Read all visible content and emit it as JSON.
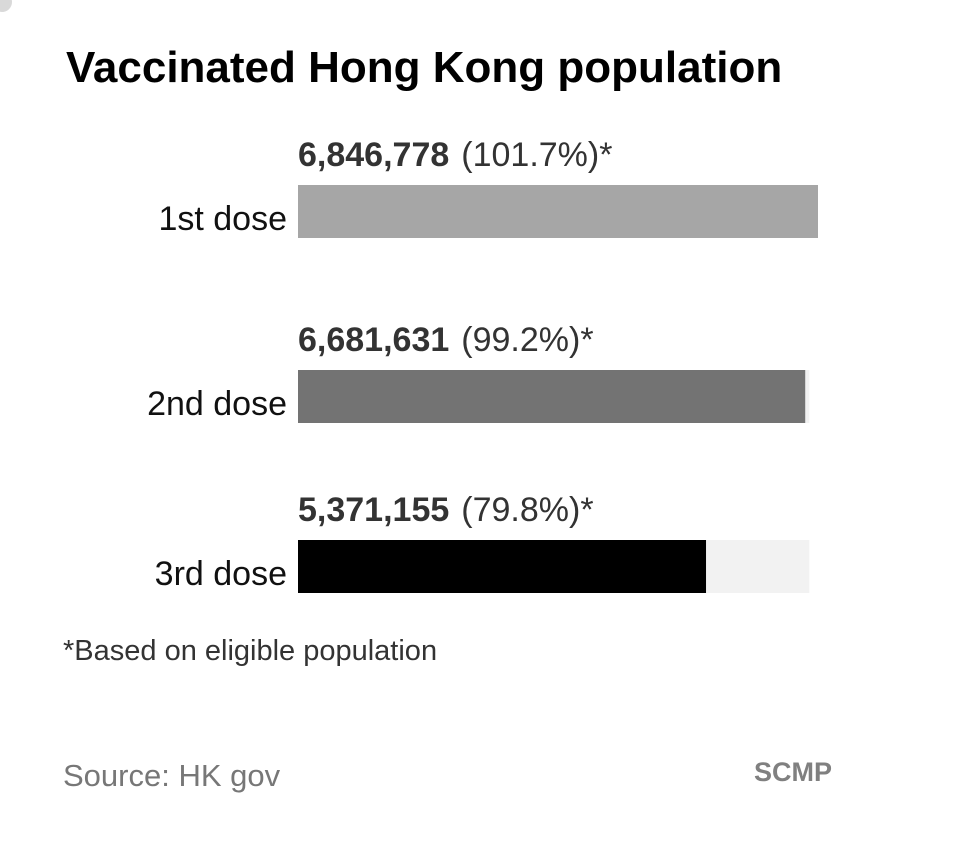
{
  "chart_data": {
    "type": "bar",
    "orientation": "horizontal",
    "title": "Vaccinated Hong Kong population",
    "categories": [
      "1st dose",
      "2nd dose",
      "3rd dose"
    ],
    "values": [
      6846778,
      6681631,
      5371155
    ],
    "percent_values": [
      101.7,
      99.2,
      79.8
    ],
    "value_labels": [
      "6,846,778",
      "6,681,631",
      "5,371,155"
    ],
    "percent_labels": [
      "(101.7%)*",
      "(99.2%)*",
      "(79.8%)*"
    ],
    "bar_colors": [
      "#a6a6a6",
      "#737373",
      "#000000"
    ],
    "reference_track_color": "#f2f2f2",
    "xlim_percent": [
      0,
      101.7
    ],
    "grid": false,
    "legend": "none"
  },
  "footnote": "*Based on eligible population",
  "source": "Source: HK gov",
  "brand": "SCMP"
}
